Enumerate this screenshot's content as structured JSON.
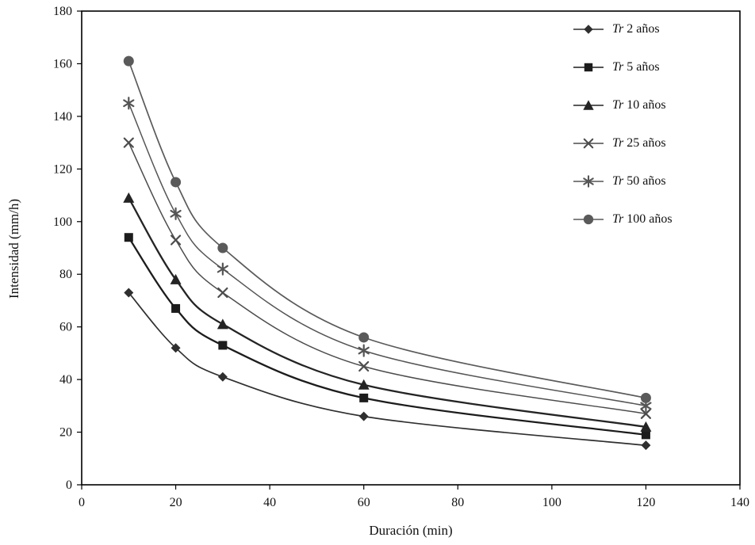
{
  "chart_data": {
    "type": "line",
    "title": "",
    "xlabel": "Duración (min)",
    "ylabel": "Intensidad (mm/h)",
    "x": [
      10,
      20,
      30,
      60,
      120
    ],
    "xlim": [
      0,
      140
    ],
    "ylim": [
      0,
      180
    ],
    "x_ticks": [
      0,
      20,
      40,
      60,
      80,
      100,
      120,
      140
    ],
    "y_ticks": [
      0,
      20,
      40,
      60,
      80,
      100,
      120,
      140,
      160,
      180
    ],
    "grid": false,
    "legend_position": "top-right",
    "series": [
      {
        "name": "Tr 2 años",
        "marker": "diamond",
        "color": "#2f2f2f",
        "values": [
          73,
          52,
          41,
          26,
          15
        ]
      },
      {
        "name": "Tr 5 años",
        "marker": "square",
        "color": "#1c1c1c",
        "values": [
          94,
          67,
          53,
          33,
          19
        ]
      },
      {
        "name": "Tr 10 años",
        "marker": "triangle",
        "color": "#242424",
        "values": [
          109,
          78,
          61,
          38,
          22
        ]
      },
      {
        "name": "Tr 25 años",
        "marker": "x",
        "color": "#4c4c4c",
        "values": [
          130,
          93,
          73,
          45,
          27
        ]
      },
      {
        "name": "Tr 50 años",
        "marker": "asterisk",
        "color": "#555555",
        "values": [
          145,
          103,
          82,
          51,
          30
        ]
      },
      {
        "name": "Tr 100 años",
        "marker": "circle",
        "color": "#5a5a5a",
        "values": [
          161,
          115,
          90,
          56,
          33
        ]
      }
    ]
  }
}
